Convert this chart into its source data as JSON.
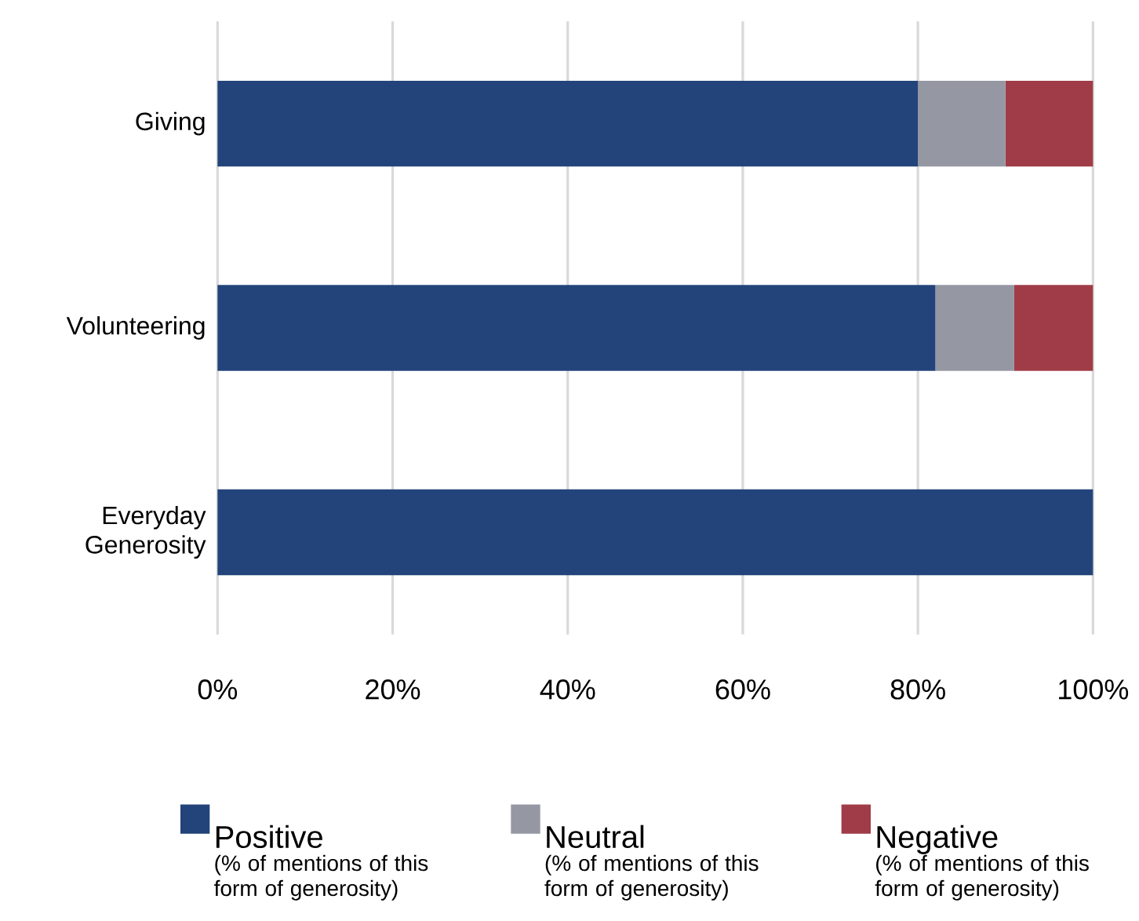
{
  "chart_data": {
    "type": "bar",
    "orientation": "horizontal",
    "stacked": true,
    "categories": [
      "Giving",
      "Volunteering",
      "Everyday Generosity"
    ],
    "series": [
      {
        "name": "Positive",
        "color": "#23447a",
        "values": [
          80,
          82,
          100
        ]
      },
      {
        "name": "Neutral",
        "color": "#9597a3",
        "values": [
          10,
          9,
          0
        ]
      },
      {
        "name": "Negative",
        "color": "#a03c47",
        "values": [
          10,
          9,
          0
        ]
      }
    ],
    "annotations": [
      "(% of mentions of this form of generosity)",
      "(% of mentions of this form of generosity)",
      "(% of mentions of this form of generosity)"
    ],
    "xlim": [
      0,
      100
    ],
    "xticks": [
      {
        "value": 0,
        "label": "0%"
      },
      {
        "value": 20,
        "label": "20%"
      },
      {
        "value": 40,
        "label": "40%"
      },
      {
        "value": 60,
        "label": "60%"
      },
      {
        "value": 80,
        "label": "80%"
      },
      {
        "value": 100,
        "label": "100%"
      }
    ],
    "grid": "x",
    "legend": "bottom"
  }
}
